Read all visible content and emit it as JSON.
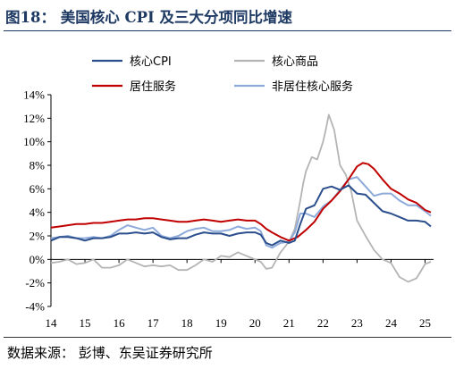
{
  "header": {
    "figure_title": "图18：  美国核心 CPI 及三大分项同比增速"
  },
  "footer": {
    "source": "数据来源：  彭博、东吴证券研究所"
  },
  "chart_data": {
    "type": "line",
    "title": "",
    "xlabel": "",
    "ylabel": "",
    "ylim": [
      -4,
      14
    ],
    "x_range": [
      2014.0,
      2025.25
    ],
    "y_ticks": [
      "14%",
      "12%",
      "10%",
      "8%",
      "6%",
      "4%",
      "2%",
      "0%",
      "-2%",
      "-4%"
    ],
    "y_tick_values": [
      14,
      12,
      10,
      8,
      6,
      4,
      2,
      0,
      -2,
      -4
    ],
    "x_ticks": [
      "14",
      "15",
      "16",
      "17",
      "18",
      "19",
      "20",
      "21",
      "22",
      "23",
      "24",
      "25"
    ],
    "x_tick_values": [
      2014,
      2015,
      2016,
      2017,
      2018,
      2019,
      2020,
      2021,
      2022,
      2023,
      2024,
      2025
    ],
    "grid": false,
    "legend": "top, two columns",
    "series": [
      {
        "name": "核心CPI",
        "color": "#2b4e8c",
        "x": [
          2014.0,
          2014.25,
          2014.5,
          2014.75,
          2015.0,
          2015.25,
          2015.5,
          2015.75,
          2016.0,
          2016.25,
          2016.5,
          2016.75,
          2017.0,
          2017.25,
          2017.5,
          2017.75,
          2018.0,
          2018.25,
          2018.5,
          2018.75,
          2019.0,
          2019.25,
          2019.5,
          2019.75,
          2020.0,
          2020.17,
          2020.33,
          2020.5,
          2020.75,
          2021.0,
          2021.17,
          2021.33,
          2021.5,
          2021.75,
          2022.0,
          2022.25,
          2022.5,
          2022.75,
          2023.0,
          2023.25,
          2023.5,
          2023.75,
          2024.0,
          2024.25,
          2024.5,
          2024.75,
          2025.0,
          2025.17
        ],
        "values": [
          1.6,
          1.9,
          1.9,
          1.8,
          1.6,
          1.8,
          1.8,
          1.9,
          2.2,
          2.2,
          2.3,
          2.2,
          2.3,
          1.9,
          1.7,
          1.8,
          1.8,
          2.1,
          2.3,
          2.2,
          2.2,
          2.0,
          2.2,
          2.3,
          2.3,
          2.1,
          1.4,
          1.2,
          1.6,
          1.4,
          1.6,
          3.0,
          4.3,
          4.6,
          6.0,
          6.2,
          5.9,
          6.3,
          5.6,
          5.5,
          4.8,
          4.1,
          3.9,
          3.6,
          3.3,
          3.3,
          3.2,
          2.8
        ]
      },
      {
        "name": "核心商品",
        "color": "#b4b4b4",
        "x": [
          2014.0,
          2014.25,
          2014.5,
          2014.75,
          2015.0,
          2015.25,
          2015.5,
          2015.75,
          2016.0,
          2016.25,
          2016.5,
          2016.75,
          2017.0,
          2017.25,
          2017.5,
          2017.75,
          2018.0,
          2018.25,
          2018.5,
          2018.75,
          2019.0,
          2019.25,
          2019.5,
          2019.75,
          2020.0,
          2020.17,
          2020.33,
          2020.5,
          2020.75,
          2021.0,
          2021.17,
          2021.33,
          2021.42,
          2021.5,
          2021.67,
          2021.83,
          2022.0,
          2022.08,
          2022.17,
          2022.33,
          2022.5,
          2022.67,
          2022.83,
          2023.0,
          2023.25,
          2023.5,
          2023.75,
          2024.0,
          2024.25,
          2024.5,
          2024.75,
          2025.0,
          2025.17
        ],
        "values": [
          -0.3,
          -0.2,
          0.0,
          -0.4,
          -0.3,
          0.0,
          -0.7,
          -0.7,
          -0.5,
          0.0,
          -0.3,
          -0.6,
          -0.5,
          -0.6,
          -0.5,
          -0.9,
          -0.9,
          -0.5,
          0.0,
          -0.2,
          0.3,
          0.2,
          0.6,
          0.3,
          0.0,
          -0.2,
          -0.8,
          -0.7,
          0.6,
          1.5,
          2.6,
          5.0,
          6.5,
          7.5,
          8.7,
          8.5,
          10.0,
          11.0,
          12.3,
          11.0,
          8.0,
          7.2,
          5.8,
          3.3,
          2.0,
          0.8,
          0.0,
          -0.3,
          -1.5,
          -1.9,
          -1.6,
          -0.4,
          -0.2
        ]
      },
      {
        "name": "居住服务",
        "color": "#c00000",
        "x": [
          2014.0,
          2014.25,
          2014.5,
          2014.75,
          2015.0,
          2015.25,
          2015.5,
          2015.75,
          2016.0,
          2016.25,
          2016.5,
          2016.75,
          2017.0,
          2017.25,
          2017.5,
          2017.75,
          2018.0,
          2018.25,
          2018.5,
          2018.75,
          2019.0,
          2019.25,
          2019.5,
          2019.75,
          2020.0,
          2020.17,
          2020.33,
          2020.5,
          2020.75,
          2021.0,
          2021.25,
          2021.5,
          2021.75,
          2022.0,
          2022.25,
          2022.5,
          2022.75,
          2023.0,
          2023.17,
          2023.33,
          2023.5,
          2023.75,
          2024.0,
          2024.25,
          2024.5,
          2024.75,
          2025.0,
          2025.17
        ],
        "values": [
          2.7,
          2.8,
          2.9,
          3.0,
          3.0,
          3.1,
          3.1,
          3.2,
          3.3,
          3.4,
          3.4,
          3.5,
          3.5,
          3.4,
          3.3,
          3.2,
          3.2,
          3.3,
          3.4,
          3.3,
          3.2,
          3.3,
          3.4,
          3.3,
          3.3,
          3.0,
          2.6,
          2.3,
          1.9,
          1.6,
          1.9,
          2.5,
          3.2,
          4.3,
          5.0,
          5.8,
          6.8,
          7.9,
          8.2,
          8.1,
          7.7,
          6.8,
          6.0,
          5.6,
          5.1,
          4.8,
          4.2,
          4.0
        ]
      },
      {
        "name": "非居住核心服务",
        "color": "#8eaadb",
        "x": [
          2014.0,
          2014.25,
          2014.5,
          2014.75,
          2015.0,
          2015.25,
          2015.5,
          2015.75,
          2016.0,
          2016.25,
          2016.5,
          2016.75,
          2017.0,
          2017.25,
          2017.5,
          2017.75,
          2018.0,
          2018.25,
          2018.5,
          2018.75,
          2019.0,
          2019.25,
          2019.5,
          2019.75,
          2020.0,
          2020.17,
          2020.33,
          2020.5,
          2020.75,
          2021.0,
          2021.17,
          2021.33,
          2021.5,
          2021.75,
          2022.0,
          2022.25,
          2022.5,
          2022.75,
          2023.0,
          2023.25,
          2023.5,
          2023.75,
          2024.0,
          2024.25,
          2024.5,
          2024.75,
          2025.0,
          2025.17
        ],
        "values": [
          1.8,
          1.9,
          2.0,
          1.8,
          1.8,
          1.9,
          1.8,
          2.0,
          2.5,
          2.9,
          2.7,
          2.5,
          2.7,
          2.0,
          1.8,
          2.0,
          2.4,
          2.6,
          2.7,
          2.4,
          2.4,
          2.5,
          2.8,
          2.6,
          2.7,
          2.4,
          1.2,
          1.0,
          1.4,
          1.5,
          2.3,
          3.9,
          3.9,
          3.6,
          4.5,
          5.0,
          5.9,
          6.8,
          7.0,
          6.2,
          5.4,
          5.6,
          5.6,
          5.0,
          4.6,
          4.6,
          4.1,
          3.7
        ]
      }
    ]
  }
}
